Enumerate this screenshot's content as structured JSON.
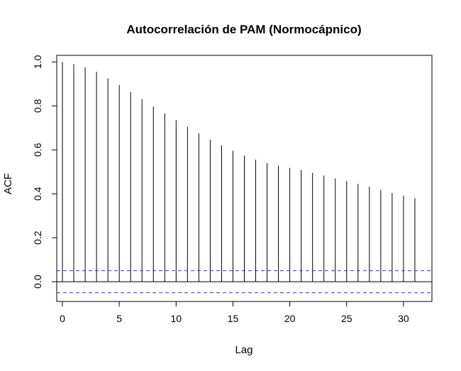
{
  "chart_data": {
    "type": "bar",
    "title": "Autocorrelación de PAM (Normocápnico)",
    "xlabel": "Lag",
    "ylabel": "ACF",
    "xlim": [
      -0.5,
      32.5
    ],
    "ylim": [
      -0.09,
      1.03
    ],
    "x_ticks": [
      "0",
      "5",
      "10",
      "15",
      "20",
      "25",
      "30"
    ],
    "y_ticks": [
      "0.0",
      "0.2",
      "0.4",
      "0.6",
      "0.8",
      "1.0"
    ],
    "lags": [
      0,
      1,
      2,
      3,
      4,
      5,
      6,
      7,
      8,
      9,
      10,
      11,
      12,
      13,
      14,
      15,
      16,
      17,
      18,
      19,
      20,
      21,
      22,
      23,
      24,
      25,
      26,
      27,
      28,
      29,
      30,
      31
    ],
    "values": [
      1.0,
      0.99,
      0.975,
      0.955,
      0.925,
      0.895,
      0.862,
      0.83,
      0.797,
      0.766,
      0.735,
      0.704,
      0.675,
      0.646,
      0.62,
      0.596,
      0.574,
      0.555,
      0.54,
      0.528,
      0.518,
      0.508,
      0.495,
      0.483,
      0.47,
      0.458,
      0.445,
      0.432,
      0.418,
      0.404,
      0.392,
      0.38
    ],
    "confidence_bound": 0.05,
    "colors": {
      "bars": "#000000",
      "ci": "#3333ee",
      "zero_line": "#000000"
    }
  }
}
